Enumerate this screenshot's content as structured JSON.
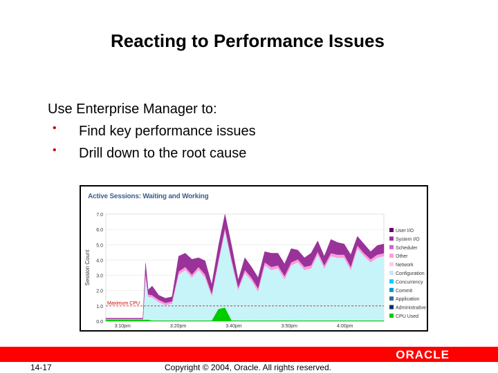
{
  "slide": {
    "title": "Reacting to Performance Issues",
    "intro": "Use Enterprise Manager to:",
    "bullets": [
      "Find key performance issues",
      "Drill down to the root cause"
    ]
  },
  "footer": {
    "slide_number": "14-17",
    "copyright": "Copyright © 2004, Oracle.  All rights reserved.",
    "logo": "ORACLE"
  },
  "colors": {
    "footer_red": "#ff0000",
    "bullet_red": "#cc0000"
  },
  "chart_data": {
    "type": "area",
    "title": "Active Sessions: Waiting and Working",
    "ylabel": "Session Count",
    "ylim": [
      0,
      7
    ],
    "yticks": [
      "7.0",
      "6.0",
      "5.0",
      "4.0",
      "3.0",
      "2.0",
      "1.0",
      "0.0"
    ],
    "xticks": [
      "3:10pm",
      "3:20pm",
      "3:40pm",
      "3:50pm",
      "4:00pm"
    ],
    "threshold": {
      "label": "Maximum CPU",
      "value": 1.0
    },
    "x": [
      0,
      1.0,
      1.9,
      2.1,
      2.8,
      3.0,
      3.2,
      3.5,
      4.0,
      4.5,
      5.0,
      5.5,
      6.0,
      6.5,
      7.0,
      7.5,
      8.0,
      8.5,
      9.0,
      9.5,
      10.0,
      10.5,
      11.0,
      11.5,
      12.0,
      12.5,
      13.0,
      13.5,
      14.0,
      14.5,
      15.0,
      15.5,
      16.0,
      16.5,
      17.0,
      17.5,
      18.0,
      18.5,
      19.0,
      19.5,
      20.0,
      20.5,
      21.0
    ],
    "series": [
      {
        "name": "CPU Used",
        "color": "#00cc00",
        "values": [
          0.1,
          0.1,
          0.1,
          0.1,
          0.1,
          0.1,
          0.1,
          0.05,
          0.05,
          0.05,
          0.05,
          0.05,
          0.05,
          0.05,
          0.05,
          0.05,
          0.05,
          0.8,
          0.9,
          0.05,
          0.05,
          0.05,
          0.05,
          0.05,
          0.05,
          0.05,
          0.05,
          0.05,
          0.05,
          0.05,
          0.05,
          0.05,
          0.05,
          0.05,
          0.05,
          0.05,
          0.05,
          0.05,
          0.05,
          0.05,
          0.05,
          0.05,
          0.05
        ]
      },
      {
        "name": "Concurrency",
        "color": "#c6f4f9",
        "values": [
          0.0,
          0.0,
          0.0,
          0.0,
          0.0,
          2.9,
          1.5,
          1.5,
          1.2,
          1.0,
          1.1,
          3.0,
          3.3,
          2.8,
          3.3,
          2.8,
          1.6,
          3.0,
          5.0,
          3.8,
          2.0,
          3.1,
          2.6,
          1.9,
          3.6,
          3.3,
          3.4,
          2.7,
          3.6,
          3.8,
          3.3,
          3.4,
          4.3,
          3.4,
          4.2,
          4.1,
          4.1,
          3.3,
          4.7,
          4.2,
          3.8,
          4.1,
          4.2
        ]
      },
      {
        "name": "Other",
        "color": "#ff9ad9",
        "values": [
          0.05,
          0.05,
          0.05,
          0.05,
          0.05,
          0.2,
          0.15,
          0.15,
          0.15,
          0.15,
          0.15,
          0.2,
          0.2,
          0.2,
          0.2,
          0.2,
          0.15,
          0.2,
          0.2,
          0.2,
          0.15,
          0.2,
          0.2,
          0.2,
          0.2,
          0.2,
          0.2,
          0.2,
          0.2,
          0.2,
          0.2,
          0.2,
          0.2,
          0.2,
          0.2,
          0.2,
          0.2,
          0.2,
          0.2,
          0.2,
          0.2,
          0.2,
          0.2
        ]
      },
      {
        "name": "Scheduler",
        "color": "#993399",
        "values": [
          0.05,
          0.05,
          0.05,
          0.05,
          0.05,
          0.6,
          0.3,
          0.6,
          0.3,
          0.3,
          0.3,
          1.0,
          0.9,
          1.0,
          0.6,
          0.9,
          0.6,
          0.9,
          0.9,
          0.9,
          0.5,
          0.8,
          0.7,
          0.7,
          0.7,
          0.9,
          0.8,
          0.8,
          0.9,
          0.6,
          0.6,
          0.8,
          0.7,
          0.6,
          0.9,
          0.8,
          0.7,
          0.8,
          0.6,
          0.6,
          0.5,
          0.6,
          0.6
        ]
      }
    ],
    "legend": {
      "placement": "right",
      "items": [
        {
          "name": "User I/O",
          "color": "#660066"
        },
        {
          "name": "System I/O",
          "color": "#993399"
        },
        {
          "name": "Scheduler",
          "color": "#cc66cc"
        },
        {
          "name": "Other",
          "color": "#ff9ad9"
        },
        {
          "name": "Network",
          "color": "#ffcce6"
        },
        {
          "name": "Configuration",
          "color": "#cfe2ff"
        },
        {
          "name": "Concurrency",
          "color": "#00ccff"
        },
        {
          "name": "Commit",
          "color": "#0099cc"
        },
        {
          "name": "Application",
          "color": "#336699"
        },
        {
          "name": "Administrative",
          "color": "#003366"
        },
        {
          "name": "CPU Used",
          "color": "#00cc00"
        }
      ]
    }
  }
}
